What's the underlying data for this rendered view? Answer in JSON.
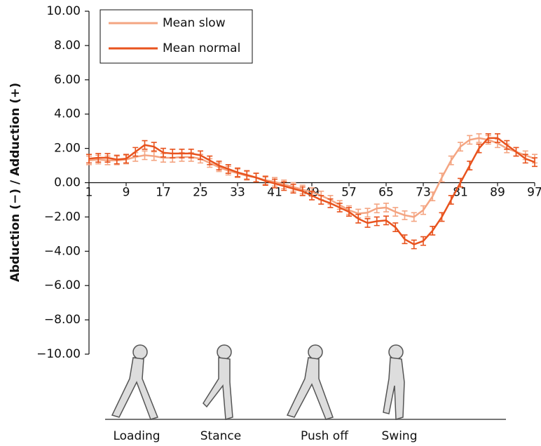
{
  "chart_data": {
    "type": "line",
    "y_label": "Abduction  (−)  / Adduction (+)",
    "x": [
      1,
      3,
      5,
      7,
      9,
      11,
      13,
      15,
      17,
      19,
      21,
      23,
      25,
      27,
      29,
      31,
      33,
      35,
      37,
      39,
      41,
      43,
      45,
      47,
      49,
      51,
      53,
      55,
      57,
      59,
      61,
      63,
      65,
      67,
      69,
      71,
      73,
      75,
      77,
      79,
      81,
      83,
      85,
      87,
      89,
      91,
      93,
      95,
      97
    ],
    "xlim": [
      1,
      97
    ],
    "xticks": [
      1,
      9,
      17,
      25,
      33,
      41,
      49,
      57,
      65,
      73,
      81,
      89,
      97
    ],
    "ylim": [
      -10,
      10
    ],
    "yticks": [
      {
        "value": 10,
        "label": "10.00"
      },
      {
        "value": 8,
        "label": "8.00"
      },
      {
        "value": 6,
        "label": "6.00"
      },
      {
        "value": 4,
        "label": "4.00"
      },
      {
        "value": 2,
        "label": "2.00"
      },
      {
        "value": 0,
        "label": "0.00"
      },
      {
        "value": -2,
        "label": "−2.00"
      },
      {
        "value": -4,
        "label": "−4.00"
      },
      {
        "value": -6,
        "label": "−6.00"
      },
      {
        "value": -8,
        "label": "−8.00"
      },
      {
        "value": -10,
        "label": "−10.00"
      }
    ],
    "legend": "top-left",
    "series": [
      {
        "name": "Mean slow",
        "color": "#f4a582",
        "error": 0.25,
        "values": [
          1.3,
          1.35,
          1.3,
          1.3,
          1.35,
          1.5,
          1.6,
          1.55,
          1.45,
          1.45,
          1.5,
          1.5,
          1.4,
          1.15,
          0.9,
          0.7,
          0.55,
          0.4,
          0.3,
          0.15,
          0.05,
          -0.1,
          -0.25,
          -0.4,
          -0.55,
          -0.75,
          -1.0,
          -1.3,
          -1.6,
          -1.8,
          -1.75,
          -1.5,
          -1.45,
          -1.7,
          -1.9,
          -2.0,
          -1.6,
          -0.8,
          0.3,
          1.3,
          2.1,
          2.5,
          2.6,
          2.5,
          2.3,
          2.0,
          1.8,
          1.6,
          1.4
        ]
      },
      {
        "name": "Mean normal",
        "color": "#e8531e",
        "error": 0.25,
        "values": [
          1.4,
          1.45,
          1.45,
          1.35,
          1.4,
          1.8,
          2.2,
          2.1,
          1.75,
          1.7,
          1.7,
          1.7,
          1.6,
          1.3,
          1.0,
          0.8,
          0.6,
          0.45,
          0.3,
          0.1,
          -0.05,
          -0.2,
          -0.35,
          -0.5,
          -0.75,
          -1.0,
          -1.2,
          -1.45,
          -1.7,
          -2.1,
          -2.35,
          -2.25,
          -2.2,
          -2.6,
          -3.3,
          -3.6,
          -3.4,
          -2.8,
          -2.0,
          -1.0,
          0.0,
          1.0,
          2.0,
          2.6,
          2.6,
          2.2,
          1.8,
          1.4,
          1.2
        ]
      }
    ],
    "annotations": [
      "Loading",
      "Stance",
      "Push off",
      "Swing"
    ]
  }
}
